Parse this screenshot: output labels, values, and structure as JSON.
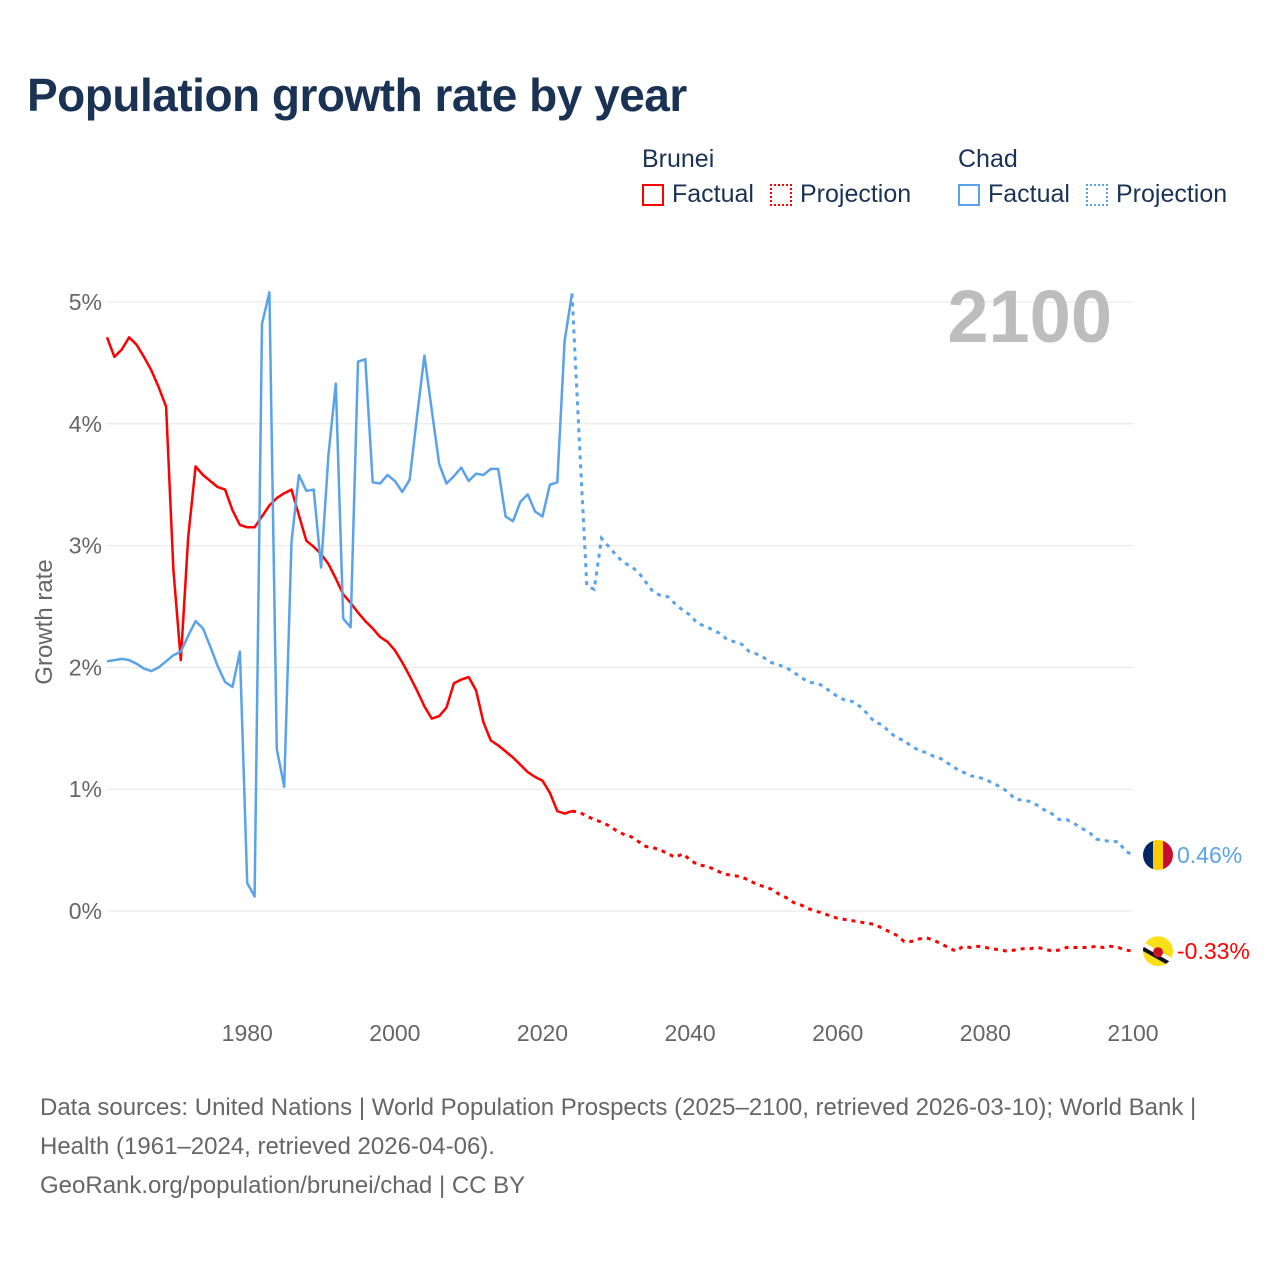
{
  "title": "Population growth rate by year",
  "legend": {
    "groups": [
      {
        "name": "Brunei",
        "color": "#ff0000",
        "items": [
          "Factual",
          "Projection"
        ]
      },
      {
        "name": "Chad",
        "color": "#5aa3ea",
        "items": [
          "Factual",
          "Projection"
        ]
      }
    ]
  },
  "footer": {
    "sources": "Data sources: United Nations | World Population Prospects (2025–2100, retrieved 2026-03-10); World Bank | Health (1961–2024, retrieved 2026-04-06).",
    "credit": "GeoRank.org/population/brunei/chad | CC BY"
  },
  "chart_data": {
    "type": "line",
    "title": "Population growth rate by year",
    "year_label": "2100",
    "ylabel": "Growth rate",
    "xlabel": "",
    "xlim": [
      1961,
      2100
    ],
    "ylim": [
      -0.8,
      5.0
    ],
    "x_ticks": [
      1980,
      2000,
      2020,
      2040,
      2060,
      2080,
      2100
    ],
    "y_ticks": [
      0,
      1,
      2,
      3,
      4,
      5
    ],
    "y_tick_labels": [
      "0%",
      "1%",
      "2%",
      "3%",
      "4%",
      "5%"
    ],
    "grid": true,
    "legend_position": "top-right",
    "series": [
      {
        "name": "Brunei",
        "color": "#ff0000",
        "end_label": "-0.33%",
        "factual_start": 1961,
        "factual": [
          4.71,
          4.55,
          4.61,
          4.71,
          4.65,
          4.55,
          4.44,
          4.3,
          4.14,
          2.8,
          2.06,
          3.07,
          3.65,
          3.58,
          3.53,
          3.48,
          3.46,
          3.29,
          3.17,
          3.15,
          3.15,
          3.24,
          3.33,
          3.39,
          3.43,
          3.46,
          3.25,
          3.04,
          2.99,
          2.93,
          2.85,
          2.73,
          2.6,
          2.53,
          2.45,
          2.38,
          2.32,
          2.25,
          2.21,
          2.14,
          2.04,
          1.93,
          1.81,
          1.68,
          1.58,
          1.6,
          1.67,
          1.87,
          1.9,
          1.92,
          1.81,
          1.55,
          1.4,
          1.36,
          1.31,
          1.26,
          1.2,
          1.14,
          1.1,
          1.07,
          0.97,
          0.82,
          0.8,
          0.82
        ],
        "projection_start": 2024,
        "projection": [
          0.82,
          0.81,
          0.78,
          0.75,
          0.73,
          0.7,
          0.66,
          0.63,
          0.61,
          0.57,
          0.53,
          0.52,
          0.5,
          0.47,
          0.44,
          0.47,
          0.42,
          0.38,
          0.37,
          0.35,
          0.32,
          0.3,
          0.29,
          0.28,
          0.25,
          0.22,
          0.2,
          0.18,
          0.14,
          0.11,
          0.07,
          0.05,
          0.02,
          0.0,
          -0.02,
          -0.04,
          -0.06,
          -0.07,
          -0.08,
          -0.09,
          -0.1,
          -0.11,
          -0.14,
          -0.17,
          -0.2,
          -0.25,
          -0.25,
          -0.23,
          -0.22,
          -0.24,
          -0.27,
          -0.3,
          -0.33,
          -0.29,
          -0.3,
          -0.29,
          -0.3,
          -0.31,
          -0.32,
          -0.33,
          -0.32,
          -0.31,
          -0.31,
          -0.3,
          -0.31,
          -0.33,
          -0.32,
          -0.3,
          -0.3,
          -0.3,
          -0.3,
          -0.29,
          -0.3,
          -0.29,
          -0.3,
          -0.32,
          -0.33
        ]
      },
      {
        "name": "Chad",
        "color": "#5aa3ea",
        "end_label": "0.46%",
        "factual_start": 1961,
        "factual": [
          2.05,
          2.06,
          2.07,
          2.06,
          2.03,
          1.99,
          1.97,
          2.0,
          2.05,
          2.1,
          2.13,
          2.26,
          2.38,
          2.32,
          2.17,
          2.01,
          1.88,
          1.84,
          2.13,
          0.23,
          0.12,
          4.82,
          5.08,
          1.33,
          1.02,
          3.03,
          3.58,
          3.45,
          3.46,
          2.82,
          3.74,
          4.33,
          2.4,
          2.33,
          4.51,
          4.53,
          3.52,
          3.51,
          3.58,
          3.53,
          3.44,
          3.54,
          4.06,
          4.56,
          4.11,
          3.67,
          3.51,
          3.57,
          3.64,
          3.53,
          3.59,
          3.58,
          3.63,
          3.63,
          3.24,
          3.2,
          3.36,
          3.42,
          3.28,
          3.24,
          3.5,
          3.52,
          4.68,
          5.07
        ],
        "projection_start": 2024,
        "projection": [
          5.07,
          3.85,
          2.67,
          2.64,
          3.06,
          2.99,
          2.92,
          2.86,
          2.83,
          2.78,
          2.7,
          2.62,
          2.59,
          2.58,
          2.52,
          2.47,
          2.43,
          2.36,
          2.34,
          2.31,
          2.28,
          2.23,
          2.21,
          2.19,
          2.13,
          2.11,
          2.08,
          2.04,
          2.02,
          2.0,
          1.96,
          1.92,
          1.88,
          1.87,
          1.85,
          1.8,
          1.76,
          1.73,
          1.72,
          1.68,
          1.62,
          1.55,
          1.53,
          1.47,
          1.42,
          1.4,
          1.35,
          1.32,
          1.3,
          1.27,
          1.25,
          1.21,
          1.17,
          1.14,
          1.11,
          1.1,
          1.08,
          1.05,
          1.02,
          0.98,
          0.92,
          0.91,
          0.9,
          0.87,
          0.83,
          0.8,
          0.75,
          0.75,
          0.72,
          0.68,
          0.65,
          0.59,
          0.58,
          0.57,
          0.57,
          0.49,
          0.46
        ]
      }
    ]
  }
}
